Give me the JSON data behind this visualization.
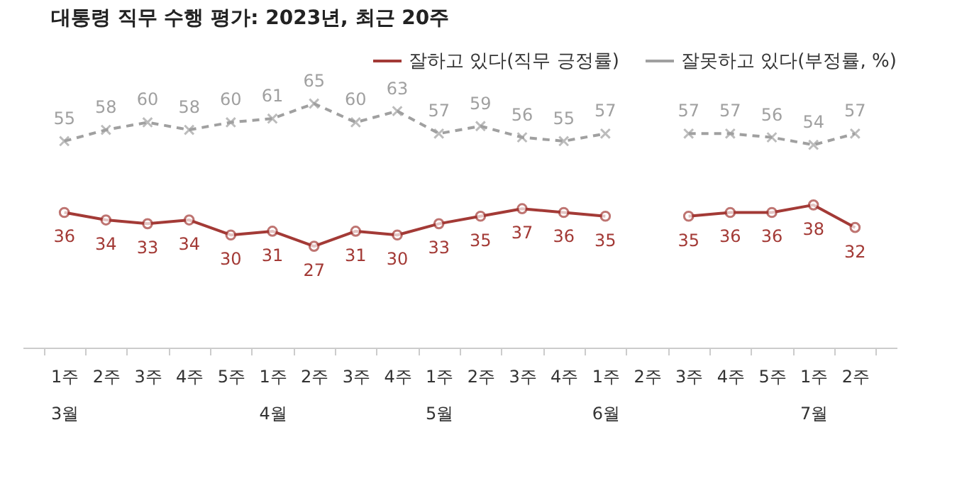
{
  "chart_data": {
    "type": "line",
    "title": "대통령 직무 수행 평가: 2023년, 최근 20주",
    "categories": [
      "1주\n3월",
      "2주",
      "3주",
      "4주",
      "5주",
      "1주\n4월",
      "2주",
      "3주",
      "4주",
      "1주\n5월",
      "2주",
      "3주",
      "4주",
      "1주\n6월",
      "2주",
      "3주",
      "4주",
      "5주",
      "1주\n7월",
      "2주"
    ],
    "series": [
      {
        "name": "잘하고 있다(직무 긍정률)",
        "color": "#a33a36",
        "marker": "circle",
        "line_style": "solid",
        "values": [
          36,
          34,
          33,
          34,
          30,
          31,
          27,
          31,
          30,
          33,
          35,
          37,
          36,
          35,
          null,
          35,
          36,
          36,
          38,
          32
        ]
      },
      {
        "name": "잘못하고 있다(부정률, %)",
        "color": "#a0a0a0",
        "marker": "cross",
        "line_style": "dashed",
        "values": [
          55,
          58,
          60,
          58,
          60,
          61,
          65,
          60,
          63,
          57,
          59,
          56,
          55,
          57,
          null,
          57,
          57,
          56,
          54,
          57
        ]
      }
    ],
    "data_labels": true,
    "legend": "top right",
    "grid": false
  }
}
